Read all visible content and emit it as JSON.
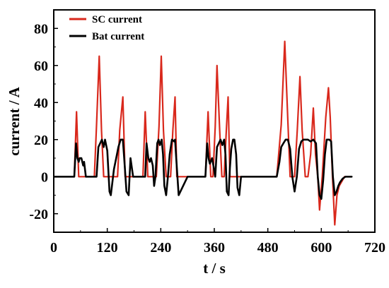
{
  "chart_data": {
    "type": "line",
    "xlabel": "t / s",
    "ylabel": "current / A",
    "xlim": [
      0,
      720
    ],
    "ylim": [
      -30,
      90
    ],
    "xticks": [
      0,
      120,
      240,
      360,
      480,
      600,
      720
    ],
    "yticks": [
      -20,
      0,
      20,
      40,
      60,
      80
    ],
    "grid": false,
    "legend": "top-left",
    "series": [
      {
        "name": "SC current",
        "color": "#d9281c",
        "x": [
          0,
          46,
          51,
          56,
          60,
          66,
          71,
          76,
          81,
          86,
          91,
          96,
          102,
          107,
          112,
          118,
          123,
          128,
          133,
          138,
          143,
          148,
          155,
          160,
          170,
          175,
          180,
          186,
          192,
          200,
          205,
          211,
          215,
          225,
          230,
          236,
          241,
          246,
          252,
          258,
          262,
          267,
          272,
          276,
          286,
          291,
          297,
          303,
          310,
          315,
          320,
          330,
          335,
          340,
          346,
          352,
          357,
          362,
          366,
          372,
          377,
          382,
          387,
          391,
          395,
          400,
          406,
          412,
          416,
          421,
          425,
          500,
          510,
          518,
          525,
          530,
          535,
          540,
          546,
          552,
          557,
          564,
          570,
          576,
          582,
          587,
          592,
          596,
          602,
          610,
          616,
          620,
          625,
          630,
          635,
          640,
          645,
          652,
          660
        ],
        "y": [
          0,
          0,
          35,
          0,
          0,
          0,
          0,
          0,
          0,
          0,
          0,
          28,
          65,
          25,
          0,
          0,
          0,
          0,
          0,
          0,
          0,
          25,
          43,
          0,
          0,
          0,
          0,
          0,
          0,
          0,
          35,
          0,
          0,
          0,
          0,
          27,
          65,
          25,
          0,
          0,
          0,
          25,
          43,
          0,
          0,
          0,
          0,
          0,
          0,
          0,
          0,
          0,
          0,
          0,
          35,
          0,
          0,
          27,
          60,
          25,
          0,
          0,
          25,
          43,
          0,
          0,
          0,
          0,
          0,
          0,
          0,
          0,
          28,
          73,
          30,
          0,
          0,
          0,
          25,
          54,
          25,
          0,
          0,
          12,
          37,
          12,
          0,
          -18,
          0,
          32,
          48,
          32,
          0,
          -26,
          -10,
          -5,
          -3,
          0,
          0
        ]
      },
      {
        "name": "Bat current",
        "color": "#000000",
        "x": [
          0,
          46,
          50,
          53,
          56,
          58,
          62,
          66,
          68,
          72,
          96,
          100,
          104,
          108,
          112,
          115,
          120,
          125,
          128,
          135,
          140,
          145,
          150,
          155,
          158,
          163,
          168,
          172,
          178,
          205,
          208,
          212,
          215,
          218,
          222,
          225,
          228,
          232,
          235,
          238,
          242,
          245,
          248,
          252,
          256,
          260,
          265,
          270,
          272,
          276,
          280,
          300,
          340,
          344,
          347,
          350,
          355,
          358,
          362,
          366,
          370,
          374,
          378,
          382,
          385,
          388,
          392,
          395,
          398,
          402,
          405,
          409,
          412,
          416,
          420,
          425,
          500,
          506,
          510,
          515,
          520,
          525,
          530,
          535,
          540,
          545,
          550,
          555,
          560,
          570,
          576,
          582,
          588,
          592,
          596,
          600,
          604,
          608,
          612,
          618,
          622,
          626,
          630,
          634,
          638,
          642,
          648,
          654,
          660,
          668
        ],
        "y": [
          0,
          0,
          18,
          10,
          8,
          10,
          10,
          6,
          8,
          0,
          0,
          16,
          18,
          20,
          16,
          20,
          14,
          -8,
          -10,
          4,
          10,
          16,
          20,
          20,
          10,
          -8,
          -10,
          10,
          0,
          0,
          18,
          10,
          8,
          10,
          6,
          -5,
          0,
          18,
          20,
          17,
          20,
          12,
          -5,
          -10,
          0,
          12,
          20,
          19,
          20,
          5,
          -10,
          0,
          0,
          18,
          10,
          7,
          10,
          6,
          0,
          16,
          18,
          20,
          17,
          20,
          12,
          -8,
          -10,
          5,
          15,
          20,
          20,
          12,
          -6,
          -10,
          0,
          0,
          0,
          8,
          16,
          18,
          20,
          20,
          15,
          0,
          -8,
          0,
          15,
          19,
          20,
          20,
          19,
          20,
          18,
          0,
          -10,
          -12,
          -2,
          12,
          20,
          20,
          19,
          0,
          -10,
          -8,
          -5,
          -3,
          -1,
          0,
          0,
          0
        ]
      }
    ]
  }
}
